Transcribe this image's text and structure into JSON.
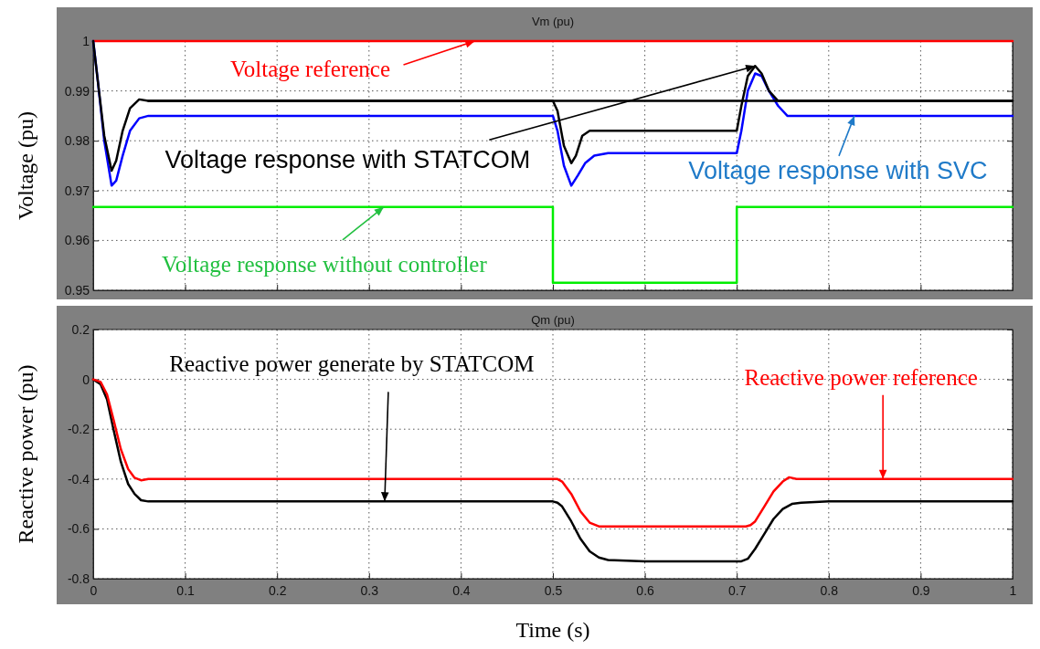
{
  "chart_data": [
    {
      "type": "line",
      "title": "Vm (pu)",
      "ylabel": "Voltage (pu)",
      "xlim": [
        0,
        1
      ],
      "ylim": [
        0.95,
        1
      ],
      "xticks": [
        0,
        0.1,
        0.2,
        0.3,
        0.4,
        0.5,
        0.6,
        0.7,
        0.8,
        0.9,
        1
      ],
      "yticks": [
        0.95,
        0.96,
        0.97,
        0.98,
        0.99,
        1
      ],
      "tick_labels": "y",
      "grid": true,
      "series": [
        {
          "color": "#ff0000",
          "x": [
            0,
            1
          ],
          "values": [
            1,
            1
          ]
        },
        {
          "color": "#00ee00",
          "x": [
            0,
            0.5,
            0.5,
            0.7,
            0.7,
            1
          ],
          "values": [
            0.9667,
            0.9667,
            0.9515,
            0.9515,
            0.9667,
            0.9667
          ]
        },
        {
          "color": "#0000ff",
          "x": [
            0,
            0.005,
            0.012,
            0.02,
            0.025,
            0.032,
            0.04,
            0.05,
            0.06,
            0.07,
            0.5,
            0.505,
            0.512,
            0.52,
            0.527,
            0.535,
            0.545,
            0.56,
            0.7,
            0.705,
            0.712,
            0.72,
            0.727,
            0.735,
            0.745,
            0.755,
            1
          ],
          "values": [
            1,
            0.992,
            0.98,
            0.971,
            0.972,
            0.977,
            0.982,
            0.9845,
            0.985,
            0.985,
            0.985,
            0.982,
            0.975,
            0.971,
            0.973,
            0.9755,
            0.977,
            0.9775,
            0.9775,
            0.982,
            0.99,
            0.9935,
            0.993,
            0.99,
            0.987,
            0.985,
            0.985
          ]
        },
        {
          "color": "#000000",
          "x": [
            0,
            0.005,
            0.012,
            0.02,
            0.025,
            0.032,
            0.04,
            0.05,
            0.06,
            1.0
          ],
          "values": [
            1,
            0.992,
            0.981,
            0.974,
            0.976,
            0.982,
            0.9865,
            0.9883,
            0.988,
            0.988
          ]
        },
        {
          "color": "#000000",
          "x": [
            0.06,
            0.5,
            0.505,
            0.512,
            0.52,
            0.525,
            0.532,
            0.54,
            0.7,
            0.705,
            0.712,
            0.72,
            0.727,
            0.735,
            0.745,
            1
          ],
          "values": [
            0.988,
            0.988,
            0.986,
            0.979,
            0.9755,
            0.977,
            0.981,
            0.982,
            0.982,
            0.987,
            0.993,
            0.995,
            0.9935,
            0.99,
            0.988,
            0.988
          ]
        }
      ],
      "annotations": [
        {
          "text": "Voltage reference",
          "x": 0.415,
          "y": 1
        },
        {
          "text": "Voltage response with STATCOM",
          "x": 0.72,
          "y": 0.995
        },
        {
          "text": "Voltage response with SVC",
          "x": 0.828,
          "y": 0.985
        },
        {
          "text": "Voltage response without controller",
          "x": 0.316,
          "y": 0.9667
        }
      ]
    },
    {
      "type": "line",
      "title": "Qm (pu)",
      "xlabel": "Time (s)",
      "ylabel": "Reactive power (pu)",
      "xlim": [
        0,
        1
      ],
      "ylim": [
        -0.8,
        0.2
      ],
      "xticks": [
        0,
        0.1,
        0.2,
        0.3,
        0.4,
        0.5,
        0.6,
        0.7,
        0.8,
        0.9,
        1
      ],
      "yticks": [
        -0.8,
        -0.6,
        -0.4,
        -0.2,
        0,
        0.2
      ],
      "grid": true,
      "series": [
        {
          "color": "#000000",
          "x": [
            0,
            0.008,
            0.015,
            0.022,
            0.03,
            0.038,
            0.045,
            0.052,
            0.06,
            0.5,
            0.505,
            0.51,
            0.52,
            0.53,
            0.54,
            0.55,
            0.56,
            0.6,
            0.705,
            0.712,
            0.72,
            0.73,
            0.74,
            0.75,
            0.76,
            0.77,
            0.8,
            1
          ],
          "values": [
            0,
            -0.02,
            -0.08,
            -0.2,
            -0.33,
            -0.42,
            -0.46,
            -0.485,
            -0.49,
            -0.49,
            -0.495,
            -0.51,
            -0.57,
            -0.64,
            -0.69,
            -0.715,
            -0.725,
            -0.73,
            -0.73,
            -0.72,
            -0.68,
            -0.62,
            -0.56,
            -0.52,
            -0.5,
            -0.495,
            -0.49,
            -0.49
          ]
        },
        {
          "color": "#ff0000",
          "x": [
            0,
            0.008,
            0.015,
            0.022,
            0.03,
            0.038,
            0.045,
            0.052,
            0.06,
            0.5,
            0.505,
            0.51,
            0.52,
            0.53,
            0.54,
            0.55,
            0.71,
            0.715,
            0.72,
            0.73,
            0.74,
            0.75,
            0.757,
            0.765,
            1
          ],
          "values": [
            0,
            -0.01,
            -0.06,
            -0.16,
            -0.28,
            -0.36,
            -0.395,
            -0.405,
            -0.4,
            -0.4,
            -0.4,
            -0.41,
            -0.46,
            -0.53,
            -0.575,
            -0.59,
            -0.59,
            -0.585,
            -0.57,
            -0.51,
            -0.45,
            -0.41,
            -0.393,
            -0.4,
            -0.4
          ]
        }
      ],
      "annotations": [
        {
          "text": "Reactive power generate by STATCOM",
          "x": 0.317,
          "y": -0.49
        },
        {
          "text": "Reactive power reference",
          "x": 0.859,
          "y": -0.4
        }
      ]
    }
  ]
}
